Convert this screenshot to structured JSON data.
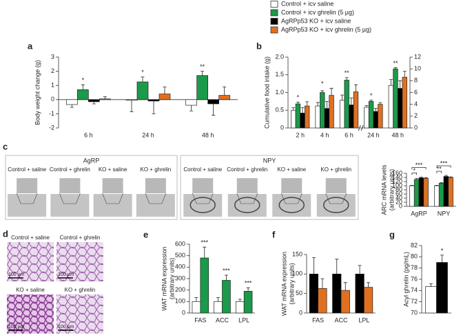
{
  "legend": [
    {
      "label": "Control + icv saline",
      "color": "#ffffff"
    },
    {
      "label": "Control + icv ghrelin (5 µg)",
      "color": "#1a9a4a"
    },
    {
      "label": "AgRPp53 KO + icv saline",
      "color": "#000000"
    },
    {
      "label": "AgRPp53 KO + icv ghrelin (5 µg)",
      "color": "#e07020"
    }
  ],
  "images": {
    "panel": "c",
    "agrp": {
      "title": "AgRP",
      "labels": [
        "Control + saline",
        "Control + ghrelin",
        "KO + saline",
        "KO + ghrelin"
      ]
    },
    "npy": {
      "title": "NPY",
      "labels": [
        "Control + saline",
        "Control + ghrelin",
        "KO + saline",
        "KO + ghrelin"
      ]
    }
  },
  "histology": {
    "panel": "d",
    "labels": [
      "Control + saline",
      "Control + ghrelin",
      "KO + saline",
      "KO + ghrelin"
    ],
    "scale": "100 µm"
  },
  "chart_data": [
    {
      "type": "bar",
      "panel": "a",
      "ylabel": [
        "Body weight change (g)"
      ],
      "categories": [
        "6 h",
        "24 h",
        "48 h"
      ],
      "series": [
        {
          "color": "#ffffff",
          "values": [
            -0.35,
            -0.05,
            -0.4
          ],
          "errors": [
            0.2,
            0.8,
            0.4
          ]
        },
        {
          "color": "#1a9a4a",
          "values": [
            0.7,
            1.25,
            1.7
          ],
          "errors": [
            0.35,
            0.35,
            0.3
          ]
        },
        {
          "color": "#000000",
          "values": [
            -0.15,
            -0.1,
            -0.3
          ],
          "errors": [
            0.15,
            0.9,
            0.8
          ]
        },
        {
          "color": "#e07020",
          "values": [
            0.05,
            0.4,
            0.3
          ],
          "errors": [
            0.15,
            0.5,
            0.6
          ]
        }
      ],
      "significance": [
        "*",
        "*",
        "**"
      ],
      "ylim": [
        -2,
        3
      ],
      "yticks": [
        -2,
        -1,
        0,
        1,
        2,
        3
      ]
    },
    {
      "type": "bar",
      "panel": "b",
      "ylabel": [
        "Cumulative food intake (g)"
      ],
      "categories": [
        "2 h",
        "4 h",
        "6 h",
        "24 h",
        "48 h"
      ],
      "series": [
        {
          "color": "#ffffff",
          "values": [
            0.5,
            0.62,
            0.78,
            null,
            null
          ],
          "errors": [
            0.07,
            0.1,
            0.15,
            null,
            null
          ]
        },
        {
          "color": "#1a9a4a",
          "values": [
            0.68,
            1.0,
            1.35,
            null,
            null
          ],
          "errors": [
            0.05,
            0.05,
            0.07,
            null,
            null
          ]
        },
        {
          "color": "#000000",
          "values": [
            0.42,
            0.55,
            0.65,
            null,
            null
          ],
          "errors": [
            0.15,
            0.2,
            0.2,
            null,
            null
          ]
        },
        {
          "color": "#e07020",
          "values": [
            0.62,
            0.92,
            1.02,
            null,
            null
          ],
          "errors": [
            0.12,
            0.2,
            0.2,
            null,
            null
          ]
        },
        {
          "color": "#ffffff",
          "axis": "y2",
          "values": [
            null,
            null,
            null,
            3.5,
            7.2
          ],
          "errors": [
            null,
            null,
            null,
            0.3,
            1.0
          ]
        },
        {
          "color": "#1a9a4a",
          "axis": "y2",
          "values": [
            null,
            null,
            null,
            4.5,
            10.0
          ],
          "errors": [
            null,
            null,
            null,
            0.2,
            0.2
          ]
        },
        {
          "color": "#000000",
          "axis": "y2",
          "values": [
            null,
            null,
            null,
            2.8,
            6.7
          ],
          "errors": [
            null,
            null,
            null,
            0.5,
            1.3
          ]
        },
        {
          "color": "#e07020",
          "axis": "y2",
          "values": [
            null,
            null,
            null,
            4.0,
            8.6
          ],
          "errors": [
            null,
            null,
            null,
            0.3,
            1.0
          ]
        }
      ],
      "significance": [
        "*",
        "*",
        "**",
        "*",
        "**"
      ],
      "ylim": [
        0,
        2
      ],
      "yticks": [
        0,
        0.5,
        {
          "value": 1,
          "label": "1.0"
        },
        1.5,
        {
          "value": 2,
          "label": "2.0"
        }
      ],
      "y2lim": [
        0,
        12
      ],
      "y2ticks": [
        0,
        2,
        4,
        6,
        8,
        10,
        12
      ]
    },
    {
      "type": "bar",
      "ylabel": [
        "ARC mRNA levels",
        "(arbitrary units)"
      ],
      "categories": [
        "AgRP",
        "NPY"
      ],
      "series": [
        {
          "color": "#ffffff",
          "values": [
            100,
            100
          ],
          "errors": [
            2,
            2
          ]
        },
        {
          "color": "#1a9a4a",
          "values": [
            130,
            112
          ],
          "errors": [
            5,
            3
          ]
        },
        {
          "color": "#000000",
          "values": [
            138,
            145
          ],
          "errors": [
            4,
            5
          ]
        },
        {
          "color": "#e07020",
          "values": [
            136,
            140
          ],
          "errors": [
            3,
            3
          ]
        }
      ],
      "significance": [
        [
          "***",
          "*"
        ],
        [
          "***",
          "**"
        ]
      ],
      "ylim": [
        0,
        160
      ],
      "yticks": [
        0,
        20,
        40,
        60,
        80,
        100,
        120,
        140,
        160
      ]
    },
    {
      "type": "bar",
      "panel": "e",
      "ylabel": [
        "WAT mRNA expression",
        "(arbitrary units)"
      ],
      "categories": [
        "FAS",
        "ACC",
        "LPL"
      ],
      "series": [
        {
          "color": "#ffffff",
          "values": [
            100,
            100,
            100
          ],
          "errors": [
            35,
            35,
            20
          ]
        },
        {
          "color": "#1a9a4a",
          "values": [
            480,
            285,
            190
          ],
          "errors": [
            95,
            45,
            30
          ]
        }
      ],
      "significance": [
        "***",
        "***",
        "***"
      ],
      "ylim": [
        0,
        600
      ],
      "yticks": [
        0,
        100,
        200,
        300,
        400,
        500,
        600
      ]
    },
    {
      "type": "bar",
      "panel": "f",
      "ylabel": [
        "WAT mRNA expression",
        "(arbitrary units)"
      ],
      "categories": [
        "FAS",
        "ACC",
        "LPL"
      ],
      "series": [
        {
          "color": "#000000",
          "values": [
            100,
            100,
            100
          ],
          "errors": [
            42,
            38,
            22
          ]
        },
        {
          "color": "#e07020",
          "values": [
            63,
            58,
            66
          ],
          "errors": [
            25,
            20,
            12
          ]
        }
      ],
      "ylim": [
        0,
        150
      ],
      "yticks": [
        0,
        50,
        100,
        150
      ]
    },
    {
      "type": "bar",
      "panel": "g",
      "ylabel": [
        "Acyl ghrelin (pg/mL)"
      ],
      "series": [
        {
          "color": "#ffffff",
          "values": [
            74.7
          ],
          "errors": [
            0.5
          ]
        },
        {
          "color": "#000000",
          "values": [
            79
          ],
          "errors": [
            1.3
          ]
        }
      ],
      "significance": [
        "*"
      ],
      "ylim": [
        70,
        82
      ],
      "yticks": [
        70,
        72,
        74,
        76,
        78,
        80,
        82
      ]
    }
  ]
}
